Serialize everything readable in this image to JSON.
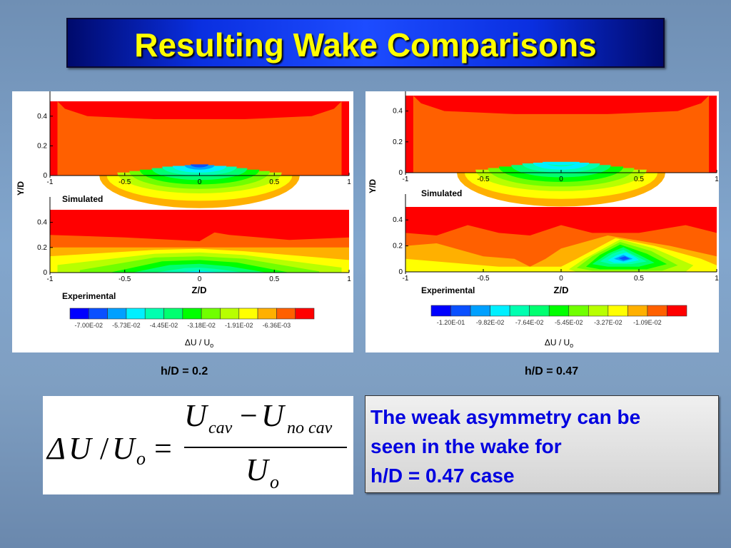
{
  "title": "Resulting Wake Comparisons",
  "panels": [
    {
      "caption": "h/D = 0.2",
      "ylabel": "Y/D",
      "xlabel": "Z/D",
      "label_top": "Simulated",
      "label_bottom": "Experimental",
      "x_ticks": [
        "-1",
        "-0.5",
        "0",
        "0.5",
        "1"
      ],
      "y_ticks": [
        "0",
        "0.2",
        "0.4"
      ],
      "colorbar_labels": [
        "-7.00E-02",
        "-5.73E-02",
        "-4.45E-02",
        "-3.18E-02",
        "-1.91E-02",
        "-6.36E-03"
      ],
      "colorbar_title": "ΔU / U",
      "colorbar_title_sub": "o"
    },
    {
      "caption": "h/D = 0.47",
      "ylabel": "Y/D",
      "xlabel": "Z/D",
      "label_top": "Simulated",
      "label_bottom": "Experimental",
      "x_ticks": [
        "-1",
        "-0.5",
        "0",
        "0.5",
        "1"
      ],
      "y_ticks": [
        "0",
        "0.2",
        "0.4"
      ],
      "colorbar_labels": [
        "-1.20E-01",
        "-9.82E-02",
        "-7.64E-02",
        "-5.45E-02",
        "-3.27E-02",
        "-1.09E-02"
      ],
      "colorbar_title": "ΔU / U",
      "colorbar_title_sub": "o"
    }
  ],
  "colorbar_colors": [
    "#0000ff",
    "#0a50ff",
    "#00a0ff",
    "#00f0ff",
    "#00ffb0",
    "#00ff70",
    "#00ff00",
    "#70ff00",
    "#b8ff00",
    "#ffff00",
    "#ffb000",
    "#ff6000",
    "#ff0000"
  ],
  "formula": {
    "lhs_delta": "Δ",
    "lhs_U": "U",
    "slash": "/",
    "lhs_Uo": "U",
    "lhs_o": "o",
    "eq": "=",
    "num_U1": "U",
    "num_cav": "cav",
    "minus": "−",
    "num_U2": "U",
    "num_nocav": "no cav",
    "den_U": "U",
    "den_o": "o"
  },
  "note": {
    "line1": "The weak asymmetry can be",
    "line2": "seen in the wake for",
    "line3": "h/D = 0.47 case"
  },
  "chart_data": [
    {
      "type": "heatmap",
      "title": "h/D = 0.2",
      "xlabel": "Z/D",
      "ylabel": "Y/D",
      "xlim": [
        -1,
        1
      ],
      "ylim": [
        0,
        0.5
      ],
      "subplots": [
        "Simulated",
        "Experimental"
      ],
      "colorbar": {
        "title": "ΔU / Uo",
        "labels": [
          -0.07,
          -0.0573,
          -0.0445,
          -0.0318,
          -0.0191,
          -0.00636
        ]
      },
      "wake_minimum": {
        "Simulated": {
          "z": 0,
          "y": 0.08
        },
        "Experimental": {
          "z": 0,
          "y": 0
        }
      }
    },
    {
      "type": "heatmap",
      "title": "h/D = 0.47",
      "xlabel": "Z/D",
      "ylabel": "Y/D",
      "xlim": [
        -1,
        1
      ],
      "ylim": [
        0,
        0.5
      ],
      "subplots": [
        "Simulated",
        "Experimental"
      ],
      "colorbar": {
        "title": "ΔU / Uo",
        "labels": [
          -0.12,
          -0.0982,
          -0.0764,
          -0.0545,
          -0.0327,
          -0.0109
        ]
      },
      "wake_minimum": {
        "Simulated": {
          "z": 0,
          "y": 0.07
        },
        "Experimental": {
          "z": 0.4,
          "y": 0.11
        }
      }
    }
  ]
}
